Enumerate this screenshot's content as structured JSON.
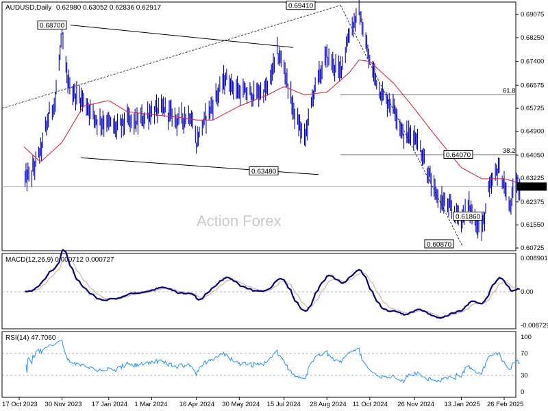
{
  "header": {
    "symbol": "AUDUSD,Daily",
    "ohlc": "0.62980 0.63052 0.62836 0.62917"
  },
  "watermark": "Action Forex",
  "colors": {
    "price": "#0000cd",
    "ma": "#e32636",
    "macd": "#000080",
    "signal": "#d2a0a0",
    "rsi": "#1e90ff",
    "grid": "#777777"
  },
  "chart_data": [
    {
      "type": "candlestick",
      "title": "AUDUSD,Daily",
      "x_labels": [
        "17 Oct 2023",
        "30 Nov 2023",
        "17 Jan 2024",
        "1 Mar 2024",
        "16 Apr 2024",
        "30 May 2024",
        "15 Jul 2024",
        "28 Aug 2024",
        "11 Oct 2024",
        "26 Nov 2024",
        "13 Jan 2025",
        "26 Feb 2025"
      ],
      "y_ticks": [
        0.6908,
        0.6825,
        0.674,
        0.6655,
        0.6572,
        0.649,
        0.6405,
        0.6322,
        0.6237,
        0.6155,
        0.6072
      ],
      "y_tick_labels": [
        "0.69075",
        "0.68250",
        "0.67400",
        "0.66575",
        "0.65725",
        "0.64900",
        "0.64050",
        "0.63225",
        "0.62375",
        "0.61550",
        "0.60725"
      ],
      "ylim": [
        0.6055,
        0.695
      ],
      "current_price": "0.62917",
      "annotations": [
        {
          "label": "0.68700",
          "value": 0.687
        },
        {
          "label": "0.69410",
          "value": 0.6941
        },
        {
          "label": "0.63480",
          "value": 0.6348
        },
        {
          "label": "0.64070",
          "value": 0.6407
        },
        {
          "label": "0.61860",
          "value": 0.6186
        },
        {
          "label": "0.60870",
          "value": 0.6087
        }
      ],
      "fib_levels": [
        {
          "label": "61.8",
          "value": 0.662
        },
        {
          "label": "38.2",
          "value": 0.6406
        }
      ],
      "close_path": [
        [
          "17 Oct 2023",
          0.63
        ],
        [
          "30 Oct 2023",
          0.634
        ],
        [
          "8 Nov 2023",
          0.642
        ],
        [
          "17 Nov 2023",
          0.655
        ],
        [
          "23 Nov 2023",
          0.66
        ],
        [
          "30 Nov 2023",
          0.6835
        ],
        [
          "5 Dec 2023",
          0.668
        ],
        [
          "12 Dec 2023",
          0.6625
        ],
        [
          "22 Dec 2023",
          0.66
        ],
        [
          "5 Jan 2024",
          0.653
        ],
        [
          "17 Jan 2024",
          0.652
        ],
        [
          "25 Jan 2024",
          0.65
        ],
        [
          "5 Feb 2024",
          0.653
        ],
        [
          "15 Feb 2024",
          0.652
        ],
        [
          "1 Mar 2024",
          0.656
        ],
        [
          "14 Mar 2024",
          0.657
        ],
        [
          "28 Mar 2024",
          0.653
        ],
        [
          "10 Apr 2024",
          0.655
        ],
        [
          "16 Apr 2024",
          0.645
        ],
        [
          "23 Apr 2024",
          0.652
        ],
        [
          "3 May 2024",
          0.659
        ],
        [
          "16 May 2024",
          0.668
        ],
        [
          "30 May 2024",
          0.663
        ],
        [
          "14 Jun 2024",
          0.662
        ],
        [
          "28 Jun 2024",
          0.664
        ],
        [
          "8 Jul 2024",
          0.677
        ],
        [
          "15 Jul 2024",
          0.672
        ],
        [
          "25 Jul 2024",
          0.656
        ],
        [
          "5 Aug 2024",
          0.646
        ],
        [
          "15 Aug 2024",
          0.664
        ],
        [
          "28 Aug 2024",
          0.676
        ],
        [
          "10 Sep 2024",
          0.67
        ],
        [
          "20 Sep 2024",
          0.684
        ],
        [
          "30 Sep 2024",
          0.692
        ],
        [
          "11 Oct 2024",
          0.6735
        ],
        [
          "25 Oct 2024",
          0.661
        ],
        [
          "5 Nov 2024",
          0.658
        ],
        [
          "15 Nov 2024",
          0.647
        ],
        [
          "26 Nov 2024",
          0.648
        ],
        [
          "5 Dec 2024",
          0.64
        ],
        [
          "16 Dec 2024",
          0.627
        ],
        [
          "2 Jan 2025",
          0.621
        ],
        [
          "13 Jan 2025",
          0.618
        ],
        [
          "20 Jan 2025",
          0.6225
        ],
        [
          "3 Feb 2025",
          0.613
        ],
        [
          "10 Feb 2025",
          0.627
        ],
        [
          "20 Feb 2025",
          0.636
        ],
        [
          "26 Feb 2025",
          0.63
        ],
        [
          "3 Mar 2025",
          0.621
        ],
        [
          "10 Mar 2025",
          0.63
        ],
        [
          "14 Mar 2025",
          0.6292
        ]
      ],
      "ma_path": [
        [
          "17 Oct 2023",
          0.645
        ],
        [
          "8 Nov 2023",
          0.638
        ],
        [
          "30 Nov 2023",
          0.645
        ],
        [
          "22 Dec 2023",
          0.658
        ],
        [
          "17 Jan 2024",
          0.66
        ],
        [
          "5 Feb 2024",
          0.656
        ],
        [
          "1 Mar 2024",
          0.655
        ],
        [
          "28 Mar 2024",
          0.654
        ],
        [
          "16 Apr 2024",
          0.653
        ],
        [
          "3 May 2024",
          0.653
        ],
        [
          "30 May 2024",
          0.658
        ],
        [
          "28 Jun 2024",
          0.662
        ],
        [
          "15 Jul 2024",
          0.665
        ],
        [
          "5 Aug 2024",
          0.662
        ],
        [
          "28 Aug 2024",
          0.663
        ],
        [
          "20 Sep 2024",
          0.67
        ],
        [
          "30 Sep 2024",
          0.6745
        ],
        [
          "11 Oct 2024",
          0.674
        ],
        [
          "5 Nov 2024",
          0.666
        ],
        [
          "26 Nov 2024",
          0.657
        ],
        [
          "16 Dec 2024",
          0.648
        ],
        [
          "13 Jan 2025",
          0.636
        ],
        [
          "3 Feb 2025",
          0.632
        ],
        [
          "26 Feb 2025",
          0.632
        ],
        [
          "14 Mar 2025",
          0.6305
        ]
      ]
    },
    {
      "type": "line",
      "title": "MACD(12,26,9) 0.000712 0.000727",
      "y_tick_labels": [
        "0.008901",
        "0.00",
        "-0.008729"
      ],
      "ylim": [
        -0.009,
        0.01
      ],
      "series": [
        {
          "name": "MACD(12,26,9)",
          "values": [
            0.000712
          ]
        },
        {
          "name": "Signal",
          "values": [
            0.000727
          ]
        }
      ]
    },
    {
      "type": "line",
      "title": "RSI(14) 47.7060",
      "y_tick_labels": [
        "100",
        "70",
        "30",
        "0"
      ],
      "ylim": [
        0,
        100
      ],
      "levels": [
        70,
        30
      ],
      "series": [
        {
          "name": "RSI(14)",
          "values": [
            47.706
          ]
        }
      ]
    }
  ]
}
